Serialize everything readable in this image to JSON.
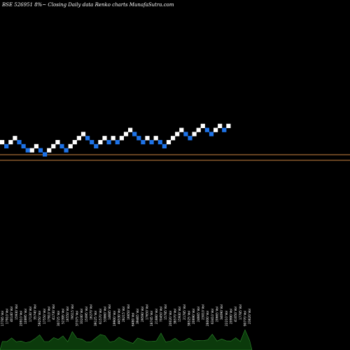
{
  "header": {
    "title": "BSE 526951 8%~ Closing Daily data Renko charts MunafaSutra.com"
  },
  "colors": {
    "background": "#000000",
    "up_brick": "#ffffff",
    "down_brick": "#1e73e8",
    "reference_line": "#cd853f",
    "volume_fill": "#0b3a0b",
    "volume_stroke": "#2c8a2c"
  },
  "chart_data": {
    "type": "renko",
    "title": "BSE 526951 8%~ Closing Daily data Renko charts MunafaSutra.com",
    "box_size_percent": 8,
    "brick_levels": [
      5,
      4,
      5,
      6,
      5,
      4,
      3,
      3,
      4,
      3,
      2,
      3,
      4,
      5,
      4,
      3,
      4,
      5,
      6,
      7,
      6,
      5,
      4,
      5,
      6,
      5,
      6,
      5,
      6,
      7,
      8,
      7,
      6,
      5,
      6,
      5,
      6,
      5,
      4,
      5,
      6,
      7,
      8,
      7,
      6,
      7,
      8,
      9,
      8,
      7,
      8,
      9,
      8,
      9
    ],
    "brick_directions": [
      "up",
      "down",
      "up",
      "up",
      "down",
      "down",
      "down",
      "up",
      "up",
      "down",
      "down",
      "up",
      "up",
      "up",
      "down",
      "down",
      "up",
      "up",
      "up",
      "up",
      "down",
      "down",
      "down",
      "up",
      "up",
      "down",
      "up",
      "down",
      "up",
      "up",
      "up",
      "down",
      "down",
      "down",
      "up",
      "down",
      "up",
      "down",
      "down",
      "up",
      "up",
      "up",
      "up",
      "down",
      "down",
      "up",
      "up",
      "up",
      "down",
      "down",
      "up",
      "up",
      "down",
      "up"
    ],
    "reference_lines": [
      "upper",
      "lower"
    ],
    "volume_labels": [
      "17785 Vol",
      "17910 Vol",
      "40140 Vol",
      "15930 Vol",
      "20910 Vol",
      "10895 Vol",
      "17130 Vol",
      "35740 Vol",
      "59250 Vol",
      "17550 Vol",
      "17910 Vol",
      "41730 Vol",
      "30725 Vol",
      "52395 Vol",
      "16550 Vol",
      "79515 Vol",
      "37375 Vol",
      "33240 Vol",
      "15095 Vol",
      "16270 Vol",
      "39125 Vol",
      "61570 Vol",
      "53860 Vol",
      "14685 Vol",
      "19900 Vol",
      "44530 Vol",
      "28215 Vol",
      "16650 Vol",
      "6480 Vol",
      "39465 Vol",
      "29590 Vol",
      "17650 Vol",
      "18745 Vol",
      "21880 Vol",
      "70450 Vol",
      "15785 Vol",
      "20020 Vol",
      "38570 Vol",
      "15930 Vol",
      "21785 Vol",
      "38525 Vol",
      "20690 Vol",
      "24665 Vol",
      "23010 Vol",
      "28000 Vol",
      "63410 Vol",
      "20665 Vol",
      "34090 Vol",
      "22210 Vol",
      "20990 Vol",
      "41050 Vol",
      "17785 Vol",
      "90770 Vol",
      "23620 Vol"
    ],
    "volume_values": [
      17785,
      17910,
      40140,
      15930,
      20910,
      10895,
      17130,
      35740,
      59250,
      17550,
      17910,
      41730,
      30725,
      52395,
      16550,
      79515,
      37375,
      33240,
      15095,
      16270,
      39125,
      61570,
      53860,
      14685,
      19900,
      44530,
      28215,
      16650,
      6480,
      39465,
      29590,
      17650,
      18745,
      21880,
      70450,
      15785,
      20020,
      38570,
      15930,
      21785,
      38525,
      20690,
      24665,
      23010,
      28000,
      63410,
      20665,
      34090,
      22210,
      20990,
      41050,
      17785,
      90770,
      23620
    ]
  }
}
